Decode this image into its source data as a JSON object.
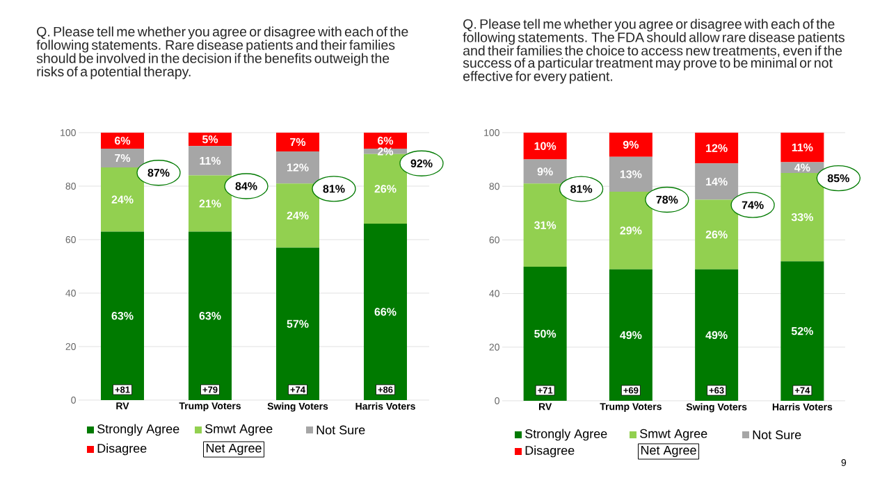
{
  "chart_data": [
    {
      "type": "bar",
      "stacked": true,
      "title": "Q. Please tell me whether you agree or disagree with each of the following statements. Rare disease patients and their families should be involved in the decision if the benefits outweigh the risks of a potential therapy.",
      "categories": [
        "RV",
        "Trump Voters",
        "Swing Voters",
        "Harris Voters"
      ],
      "ylim": [
        0,
        100
      ],
      "yticks": [
        0,
        20,
        40,
        60,
        80,
        100
      ],
      "grid": "y",
      "legend": "bottom",
      "series": [
        {
          "name": "Strongly Agree",
          "color": "#007a00",
          "values": [
            63,
            63,
            57,
            66
          ],
          "value_labels": [
            "63%",
            "63%",
            "57%",
            "66%"
          ]
        },
        {
          "name": "Smwt Agree",
          "color": "#92d050",
          "values": [
            24,
            21,
            24,
            26
          ],
          "value_labels": [
            "24%",
            "21%",
            "24%",
            "26%"
          ]
        },
        {
          "name": "Not Sure",
          "color": "#a6a6a6",
          "values": [
            7,
            11,
            12,
            2
          ],
          "value_labels": [
            "7%",
            "11%",
            "12%",
            "2%"
          ]
        },
        {
          "name": "Disagree",
          "color": "#ff0000",
          "values": [
            6,
            5,
            7,
            6
          ],
          "value_labels": [
            "6%",
            "5%",
            "7%",
            "6%"
          ]
        }
      ],
      "annotations": [
        "87%",
        "84%",
        "81%",
        "92%",
        "+81",
        "+79",
        "+74",
        "+86",
        "Net Agree"
      ]
    },
    {
      "type": "bar",
      "stacked": true,
      "title": "Q. Please tell me whether you agree or disagree with each of the following statements. The FDA should allow rare disease patients and their families the choice to access new treatments, even if the success of a particular treatment may prove to be minimal or not effective for every patient.",
      "categories": [
        "RV",
        "Trump Voters",
        "Swing Voters",
        "Harris Voters"
      ],
      "ylim": [
        0,
        100
      ],
      "yticks": [
        0,
        20,
        40,
        60,
        80,
        100
      ],
      "grid": "y",
      "legend": "bottom",
      "series": [
        {
          "name": "Strongly Agree",
          "color": "#007a00",
          "values": [
            50,
            49,
            49,
            52
          ],
          "value_labels": [
            "50%",
            "49%",
            "49%",
            "52%"
          ]
        },
        {
          "name": "Smwt Agree",
          "color": "#92d050",
          "values": [
            31,
            29,
            26,
            33
          ],
          "value_labels": [
            "31%",
            "29%",
            "26%",
            "33%"
          ]
        },
        {
          "name": "Not Sure",
          "color": "#a6a6a6",
          "values": [
            9,
            13,
            13.5,
            4
          ],
          "value_labels": [
            "9%",
            "13%",
            "14%",
            "4%"
          ]
        },
        {
          "name": "Disagree",
          "color": "#ff0000",
          "values": [
            10,
            9,
            11.5,
            11
          ],
          "value_labels": [
            "10%",
            "9%",
            "12%",
            "11%"
          ]
        }
      ],
      "annotations": [
        "81%",
        "78%",
        "74%",
        "85%",
        "+71",
        "+69",
        "+63",
        "+74",
        "Net Agree",
        "9"
      ]
    }
  ]
}
